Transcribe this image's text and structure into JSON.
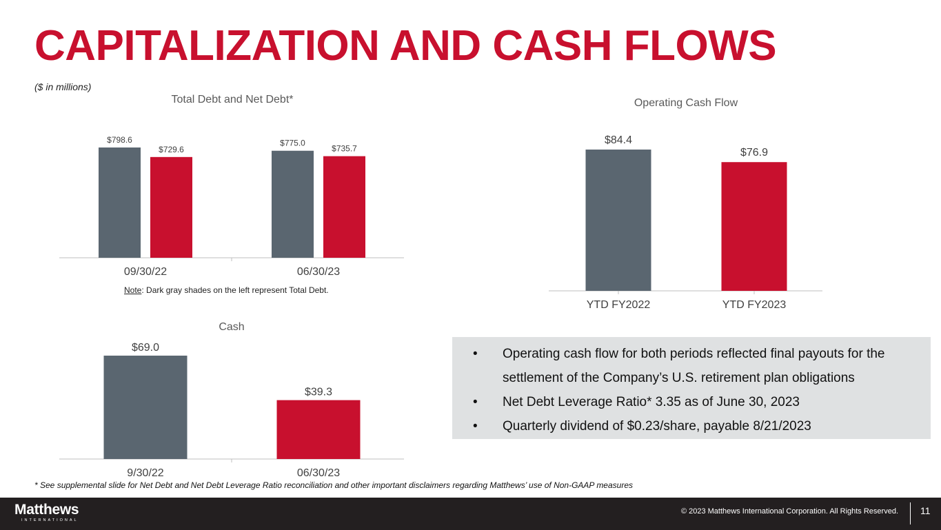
{
  "slide": {
    "title": "CAPITALIZATION AND CASH FLOWS",
    "units": "($ in millions)",
    "note_label": "Note",
    "note_text": ": Dark gray shades on the left represent Total Debt.",
    "bullets": [
      "Operating cash flow for both periods reflected final payouts for the settlement of the Company’s U.S. retirement plan obligations",
      "Net Debt Leverage Ratio* 3.35 as of June 30, 2023",
      "Quarterly dividend of $0.23/share, payable 8/21/2023"
    ],
    "footnote": "* See supplemental slide for Net Debt and Net Debt Leverage Ratio reconciliation and other important disclaimers regarding Matthews’ use of Non-GAAP measures"
  },
  "footer": {
    "logo_word": "Matthews",
    "logo_sub": "INTERNATIONAL",
    "copyright": "© 2023 Matthews International Corporation. All Rights Reserved.",
    "page_number": "11"
  },
  "colors": {
    "gray": "#5a6670",
    "red": "#c8102e",
    "title_red": "#c8102e",
    "callout_bg": "#dfe1e2"
  },
  "chart_data": [
    {
      "type": "bar",
      "title": "Total Debt and Net Debt*",
      "categories": [
        "09/30/22",
        "06/30/23"
      ],
      "series": [
        {
          "values": [
            798.6,
            775.0
          ],
          "labels": [
            "$798.6",
            "$775.0"
          ],
          "color": "#5a6670"
        },
        {
          "values": [
            729.6,
            735.7
          ],
          "labels": [
            "$729.6",
            "$735.7"
          ],
          "color": "#c8102e"
        }
      ],
      "ylim": [
        0,
        798.6
      ],
      "grid": false
    },
    {
      "type": "bar",
      "title": "Operating Cash Flow",
      "categories": [
        "YTD FY2022",
        "YTD FY2023"
      ],
      "series": [
        {
          "values": [
            84.4,
            76.9
          ],
          "labels": [
            "$84.4",
            "$76.9"
          ],
          "colors": [
            "#5a6670",
            "#c8102e"
          ]
        }
      ],
      "ylim": [
        0,
        84.4
      ],
      "grid": false
    },
    {
      "type": "bar",
      "title": "Cash",
      "categories": [
        "9/30/22",
        "06/30/23"
      ],
      "series": [
        {
          "values": [
            69.0,
            39.3
          ],
          "labels": [
            "$69.0",
            "$39.3"
          ],
          "colors": [
            "#5a6670",
            "#c8102e"
          ]
        }
      ],
      "ylim": [
        0,
        69.0
      ],
      "grid": false
    }
  ]
}
